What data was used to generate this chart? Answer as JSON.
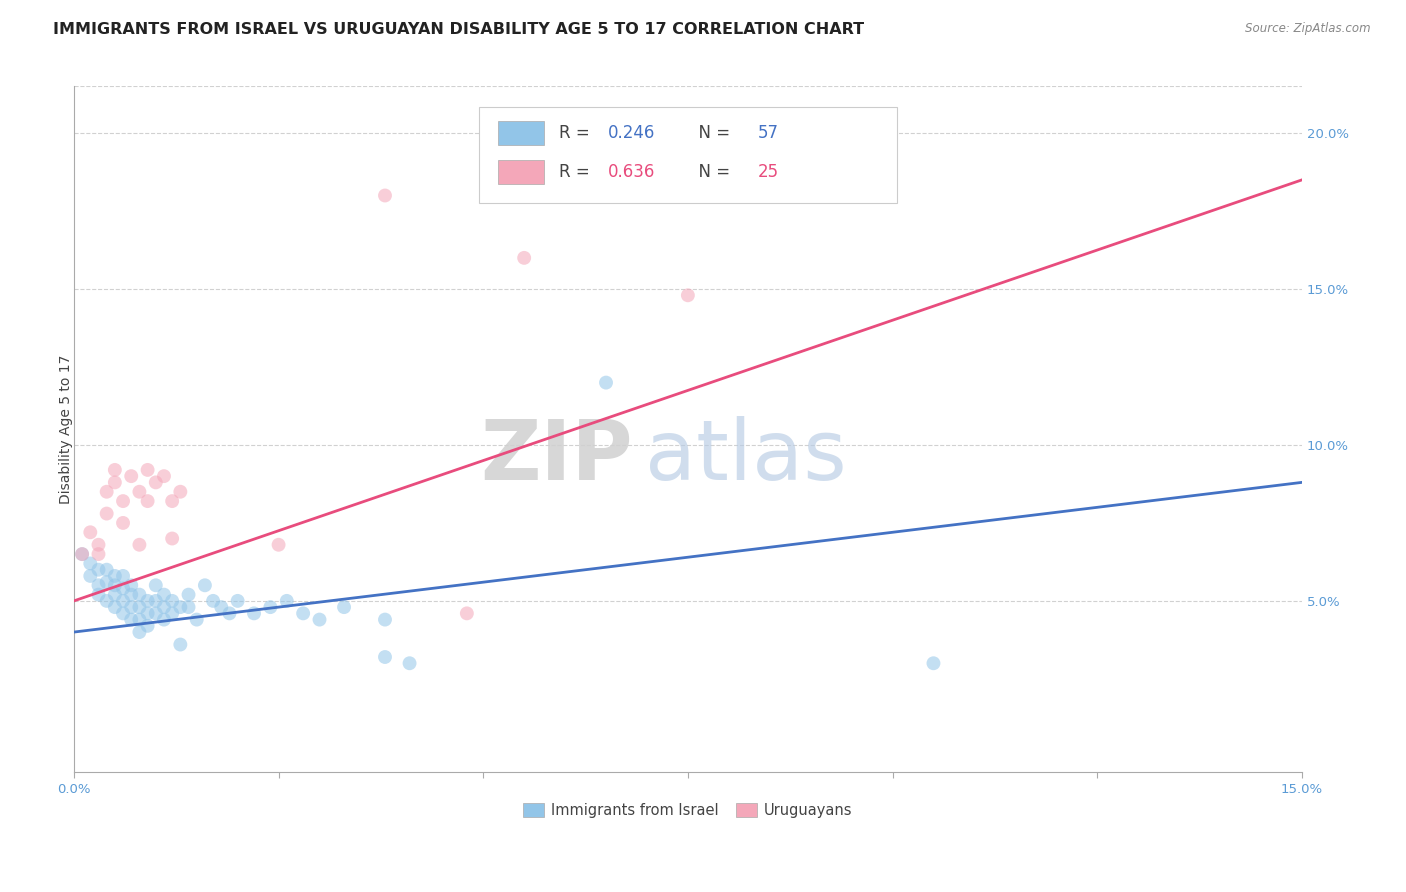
{
  "title": "IMMIGRANTS FROM ISRAEL VS URUGUAYAN DISABILITY AGE 5 TO 17 CORRELATION CHART",
  "source": "Source: ZipAtlas.com",
  "ylabel": "Disability Age 5 to 17",
  "xlabel": "",
  "xlim": [
    0.0,
    0.15
  ],
  "ylim": [
    -0.005,
    0.215
  ],
  "xtick_positions": [
    0.0,
    0.025,
    0.05,
    0.075,
    0.1,
    0.125,
    0.15
  ],
  "xtick_labels": [
    "0.0%",
    "",
    "",
    "",
    "",
    "",
    "15.0%"
  ],
  "ytick_positions": [
    0.0,
    0.05,
    0.1,
    0.15,
    0.2
  ],
  "ytick_labels_right": [
    "",
    "5.0%",
    "10.0%",
    "15.0%",
    "20.0%"
  ],
  "legend_R_entries": [
    {
      "label_r": "R = 0.246",
      "label_n": "N = 57",
      "color": "#92C5E8"
    },
    {
      "label_r": "R = 0.636",
      "label_n": "N = 25",
      "color": "#F4A7B9"
    }
  ],
  "legend_series": [
    "Immigrants from Israel",
    "Uruguayans"
  ],
  "watermark_zip": "ZIP",
  "watermark_atlas": "atlas",
  "blue_color": "#92C5E8",
  "pink_color": "#F4A7B9",
  "blue_line_color": "#4472C4",
  "pink_line_color": "#E84C7D",
  "blue_scatter": [
    [
      0.001,
      0.065
    ],
    [
      0.002,
      0.062
    ],
    [
      0.002,
      0.058
    ],
    [
      0.003,
      0.06
    ],
    [
      0.003,
      0.055
    ],
    [
      0.003,
      0.052
    ],
    [
      0.004,
      0.06
    ],
    [
      0.004,
      0.056
    ],
    [
      0.004,
      0.05
    ],
    [
      0.005,
      0.058
    ],
    [
      0.005,
      0.055
    ],
    [
      0.005,
      0.052
    ],
    [
      0.005,
      0.048
    ],
    [
      0.006,
      0.058
    ],
    [
      0.006,
      0.054
    ],
    [
      0.006,
      0.05
    ],
    [
      0.006,
      0.046
    ],
    [
      0.007,
      0.055
    ],
    [
      0.007,
      0.052
    ],
    [
      0.007,
      0.048
    ],
    [
      0.007,
      0.044
    ],
    [
      0.008,
      0.052
    ],
    [
      0.008,
      0.048
    ],
    [
      0.008,
      0.044
    ],
    [
      0.008,
      0.04
    ],
    [
      0.009,
      0.05
    ],
    [
      0.009,
      0.046
    ],
    [
      0.009,
      0.042
    ],
    [
      0.01,
      0.055
    ],
    [
      0.01,
      0.05
    ],
    [
      0.01,
      0.046
    ],
    [
      0.011,
      0.052
    ],
    [
      0.011,
      0.048
    ],
    [
      0.011,
      0.044
    ],
    [
      0.012,
      0.05
    ],
    [
      0.012,
      0.046
    ],
    [
      0.013,
      0.048
    ],
    [
      0.013,
      0.036
    ],
    [
      0.014,
      0.052
    ],
    [
      0.014,
      0.048
    ],
    [
      0.015,
      0.044
    ],
    [
      0.016,
      0.055
    ],
    [
      0.017,
      0.05
    ],
    [
      0.018,
      0.048
    ],
    [
      0.019,
      0.046
    ],
    [
      0.02,
      0.05
    ],
    [
      0.022,
      0.046
    ],
    [
      0.024,
      0.048
    ],
    [
      0.026,
      0.05
    ],
    [
      0.028,
      0.046
    ],
    [
      0.03,
      0.044
    ],
    [
      0.033,
      0.048
    ],
    [
      0.038,
      0.044
    ],
    [
      0.038,
      0.032
    ],
    [
      0.041,
      0.03
    ],
    [
      0.065,
      0.12
    ],
    [
      0.105,
      0.03
    ]
  ],
  "pink_scatter": [
    [
      0.001,
      0.065
    ],
    [
      0.002,
      0.072
    ],
    [
      0.003,
      0.068
    ],
    [
      0.003,
      0.065
    ],
    [
      0.004,
      0.085
    ],
    [
      0.004,
      0.078
    ],
    [
      0.005,
      0.092
    ],
    [
      0.005,
      0.088
    ],
    [
      0.006,
      0.082
    ],
    [
      0.006,
      0.075
    ],
    [
      0.007,
      0.09
    ],
    [
      0.008,
      0.085
    ],
    [
      0.008,
      0.068
    ],
    [
      0.009,
      0.092
    ],
    [
      0.009,
      0.082
    ],
    [
      0.01,
      0.088
    ],
    [
      0.011,
      0.09
    ],
    [
      0.012,
      0.082
    ],
    [
      0.012,
      0.07
    ],
    [
      0.013,
      0.085
    ],
    [
      0.025,
      0.068
    ],
    [
      0.048,
      0.046
    ],
    [
      0.055,
      0.16
    ],
    [
      0.075,
      0.148
    ],
    [
      0.038,
      0.18
    ]
  ],
  "blue_line_x": [
    0.0,
    0.15
  ],
  "blue_line_y": [
    0.04,
    0.088
  ],
  "pink_line_x": [
    0.0,
    0.15
  ],
  "pink_line_y": [
    0.05,
    0.185
  ],
  "grid_color": "#CCCCCC",
  "bg_color": "#FFFFFF",
  "title_fontsize": 11.5,
  "axis_fontsize": 10,
  "tick_fontsize": 9.5,
  "scatter_size": 100,
  "scatter_alpha": 0.55
}
